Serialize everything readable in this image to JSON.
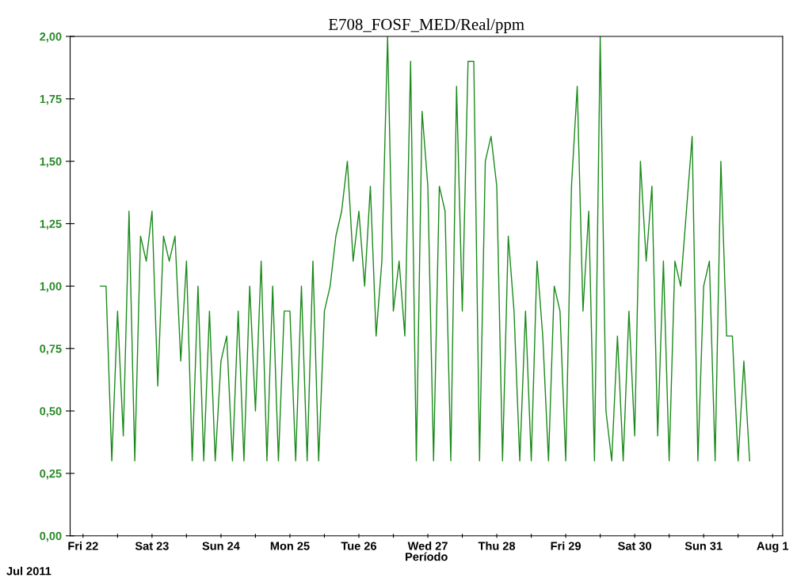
{
  "chart_data": {
    "type": "line",
    "title": "E708_FOSF_MED/Real/ppm",
    "xlabel": "Período",
    "annotations": [
      "Jul 2011"
    ],
    "x": [
      "2011-07-22T06:00",
      "2011-07-22T08:00",
      "2011-07-22T10:00",
      "2011-07-22T12:00",
      "2011-07-22T14:00",
      "2011-07-22T16:00",
      "2011-07-22T18:00",
      "2011-07-22T20:00",
      "2011-07-22T22:00",
      "2011-07-23T00:00",
      "2011-07-23T02:00",
      "2011-07-23T04:00",
      "2011-07-23T06:00",
      "2011-07-23T08:00",
      "2011-07-23T10:00",
      "2011-07-23T12:00",
      "2011-07-23T14:00",
      "2011-07-23T16:00",
      "2011-07-23T18:00",
      "2011-07-23T20:00",
      "2011-07-23T22:00",
      "2011-07-24T00:00",
      "2011-07-24T02:00",
      "2011-07-24T04:00",
      "2011-07-24T06:00",
      "2011-07-24T08:00",
      "2011-07-24T10:00",
      "2011-07-24T12:00",
      "2011-07-24T14:00",
      "2011-07-24T16:00",
      "2011-07-24T18:00",
      "2011-07-24T20:00",
      "2011-07-24T22:00",
      "2011-07-25T00:00",
      "2011-07-25T02:00",
      "2011-07-25T04:00",
      "2011-07-25T06:00",
      "2011-07-25T08:00",
      "2011-07-25T10:00",
      "2011-07-25T12:00",
      "2011-07-25T14:00",
      "2011-07-25T16:00",
      "2011-07-25T18:00",
      "2011-07-25T20:00",
      "2011-07-25T22:00",
      "2011-07-26T00:00",
      "2011-07-26T02:00",
      "2011-07-26T04:00",
      "2011-07-26T06:00",
      "2011-07-26T08:00",
      "2011-07-26T10:00",
      "2011-07-26T12:00",
      "2011-07-26T14:00",
      "2011-07-26T16:00",
      "2011-07-26T18:00",
      "2011-07-26T20:00",
      "2011-07-26T22:00",
      "2011-07-27T00:00",
      "2011-07-27T02:00",
      "2011-07-27T04:00",
      "2011-07-27T06:00",
      "2011-07-27T08:00",
      "2011-07-27T10:00",
      "2011-07-27T12:00",
      "2011-07-27T14:00",
      "2011-07-27T16:00",
      "2011-07-27T18:00",
      "2011-07-27T20:00",
      "2011-07-27T22:00",
      "2011-07-28T00:00",
      "2011-07-28T02:00",
      "2011-07-28T04:00",
      "2011-07-28T06:00",
      "2011-07-28T08:00",
      "2011-07-28T10:00",
      "2011-07-28T12:00",
      "2011-07-28T14:00",
      "2011-07-28T16:00",
      "2011-07-28T18:00",
      "2011-07-28T20:00",
      "2011-07-28T22:00",
      "2011-07-29T00:00",
      "2011-07-29T02:00",
      "2011-07-29T04:00",
      "2011-07-29T06:00",
      "2011-07-29T08:00",
      "2011-07-29T10:00",
      "2011-07-29T12:00",
      "2011-07-29T14:00",
      "2011-07-29T16:00",
      "2011-07-29T18:00",
      "2011-07-29T20:00",
      "2011-07-29T22:00",
      "2011-07-30T00:00",
      "2011-07-30T02:00",
      "2011-07-30T04:00",
      "2011-07-30T06:00",
      "2011-07-30T08:00",
      "2011-07-30T10:00",
      "2011-07-30T12:00",
      "2011-07-30T14:00",
      "2011-07-30T16:00",
      "2011-07-30T18:00",
      "2011-07-30T20:00",
      "2011-07-30T22:00",
      "2011-07-31T00:00",
      "2011-07-31T02:00",
      "2011-07-31T04:00",
      "2011-07-31T06:00",
      "2011-07-31T08:00",
      "2011-07-31T10:00",
      "2011-07-31T12:00",
      "2011-07-31T14:00",
      "2011-07-31T16:00"
    ],
    "series": [
      {
        "color": "#1a8a1a",
        "values": [
          1.0,
          1.0,
          0.3,
          0.9,
          0.4,
          1.3,
          0.3,
          1.2,
          1.1,
          1.3,
          0.6,
          1.2,
          1.1,
          1.2,
          0.7,
          1.1,
          0.3,
          1.0,
          0.3,
          0.9,
          0.3,
          0.7,
          0.8,
          0.3,
          0.9,
          0.3,
          1.0,
          0.5,
          1.1,
          0.3,
          1.0,
          0.3,
          0.9,
          0.9,
          0.3,
          1.0,
          0.3,
          1.1,
          0.3,
          0.9,
          1.0,
          1.2,
          1.3,
          1.5,
          1.1,
          1.3,
          1.0,
          1.4,
          0.8,
          1.1,
          2.0,
          0.9,
          1.1,
          0.8,
          1.9,
          0.3,
          1.7,
          1.4,
          0.3,
          1.4,
          1.3,
          0.3,
          1.8,
          0.9,
          1.9,
          1.9,
          0.3,
          1.5,
          1.6,
          1.4,
          0.3,
          1.2,
          0.9,
          0.3,
          0.9,
          0.3,
          1.1,
          0.8,
          0.3,
          1.0,
          0.9,
          0.3,
          1.4,
          1.8,
          0.9,
          1.3,
          0.3,
          2.0,
          0.5,
          0.3,
          0.8,
          0.3,
          0.9,
          0.4,
          1.5,
          1.1,
          1.4,
          0.4,
          1.1,
          0.3,
          1.1,
          1.0,
          1.3,
          1.6,
          0.3,
          1.0,
          1.1,
          0.3,
          1.5,
          0.8,
          0.8,
          0.3,
          0.7,
          0.3
        ]
      }
    ],
    "xlim": [
      "2011-07-21T19:30",
      "2011-08-01T03:30"
    ],
    "xticks": [
      {
        "value": "2011-07-22T00:00",
        "label": "Fri 22"
      },
      {
        "value": "2011-07-22T12:00",
        "label": null
      },
      {
        "value": "2011-07-23T00:00",
        "label": "Sat 23"
      },
      {
        "value": "2011-07-23T12:00",
        "label": null
      },
      {
        "value": "2011-07-24T00:00",
        "label": "Sun 24"
      },
      {
        "value": "2011-07-24T12:00",
        "label": null
      },
      {
        "value": "2011-07-25T00:00",
        "label": "Mon 25"
      },
      {
        "value": "2011-07-25T12:00",
        "label": null
      },
      {
        "value": "2011-07-26T00:00",
        "label": "Tue 26"
      },
      {
        "value": "2011-07-26T12:00",
        "label": null
      },
      {
        "value": "2011-07-27T00:00",
        "label": "Wed 27"
      },
      {
        "value": "2011-07-27T12:00",
        "label": null
      },
      {
        "value": "2011-07-28T00:00",
        "label": "Thu 28"
      },
      {
        "value": "2011-07-28T12:00",
        "label": null
      },
      {
        "value": "2011-07-29T00:00",
        "label": "Fri 29"
      },
      {
        "value": "2011-07-29T12:00",
        "label": null
      },
      {
        "value": "2011-07-30T00:00",
        "label": "Sat 30"
      },
      {
        "value": "2011-07-30T12:00",
        "label": null
      },
      {
        "value": "2011-07-31T00:00",
        "label": "Sun 31"
      },
      {
        "value": "2011-07-31T12:00",
        "label": null
      },
      {
        "value": "2011-08-01T00:00",
        "label": "Aug 1"
      }
    ],
    "ylim": [
      0,
      2
    ],
    "yticks": [
      {
        "value": 0,
        "label": "0,00"
      },
      {
        "value": 0.25,
        "label": "0,25"
      },
      {
        "value": 0.5,
        "label": "0,50"
      },
      {
        "value": 0.75,
        "label": "0,75"
      },
      {
        "value": 1.0,
        "label": "1,00"
      },
      {
        "value": 1.25,
        "label": "1,25"
      },
      {
        "value": 1.5,
        "label": "1,50"
      },
      {
        "value": 1.75,
        "label": "1,75"
      },
      {
        "value": 2.0,
        "label": "2,00"
      }
    ],
    "grid": false,
    "legend": false,
    "marker": "none",
    "line_style": "solid"
  }
}
